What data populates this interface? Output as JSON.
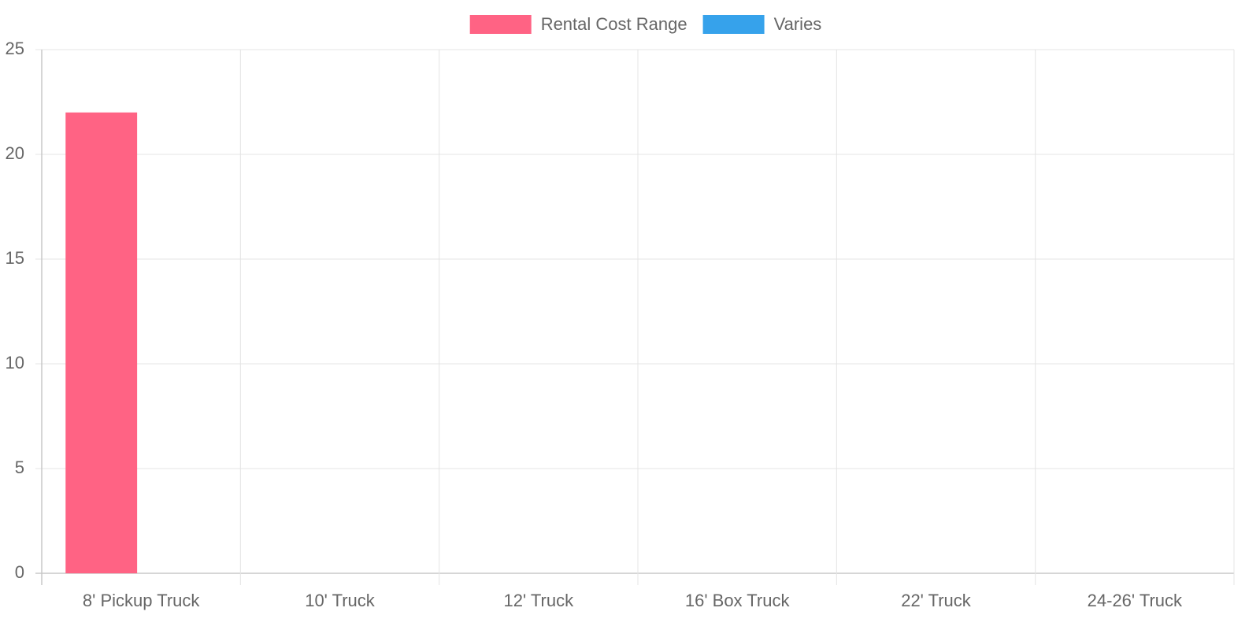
{
  "chart_data": {
    "type": "bar",
    "categories": [
      "8' Pickup Truck",
      "10' Truck",
      "12' Truck",
      "16' Box Truck",
      "22' Truck",
      "24-26' Truck"
    ],
    "series": [
      {
        "name": "Rental Cost Range",
        "color": "#ff6384",
        "values": [
          22,
          null,
          null,
          null,
          null,
          null
        ]
      },
      {
        "name": "Varies",
        "color": "#36a2eb",
        "values": [
          null,
          null,
          null,
          null,
          null,
          null
        ]
      }
    ],
    "ylim": [
      0,
      25
    ],
    "yticks": [
      0,
      5,
      10,
      15,
      20,
      25
    ],
    "grid": true,
    "legend": "top"
  }
}
